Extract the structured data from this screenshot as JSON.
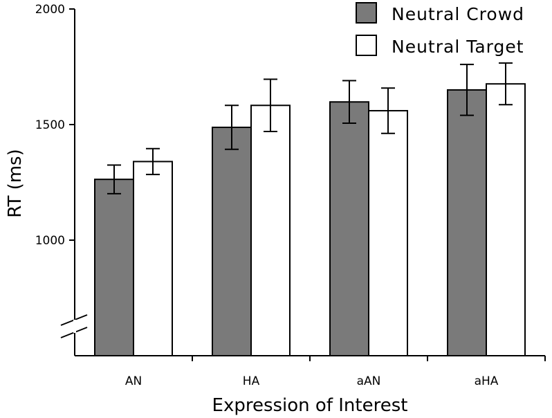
{
  "chart_data": {
    "type": "bar",
    "xlabel": "Expression of Interest",
    "ylabel": "RT (ms)",
    "categories": [
      "AN",
      "HA",
      "aAN",
      "aHA"
    ],
    "ylim": [
      1000,
      2000
    ],
    "yticks": [
      1000,
      1500,
      2000
    ],
    "axis_break": true,
    "grid": false,
    "legend_position": "top-right",
    "series": [
      {
        "name": "Neutral Crowd",
        "color": "#7a7a7a",
        "values": [
          1263,
          1488,
          1598,
          1650
        ],
        "errors": [
          62,
          95,
          92,
          110
        ]
      },
      {
        "name": "Neutral Target",
        "color": "#ffffff",
        "values": [
          1340,
          1583,
          1560,
          1676
        ],
        "errors": [
          56,
          113,
          98,
          90
        ]
      }
    ]
  }
}
